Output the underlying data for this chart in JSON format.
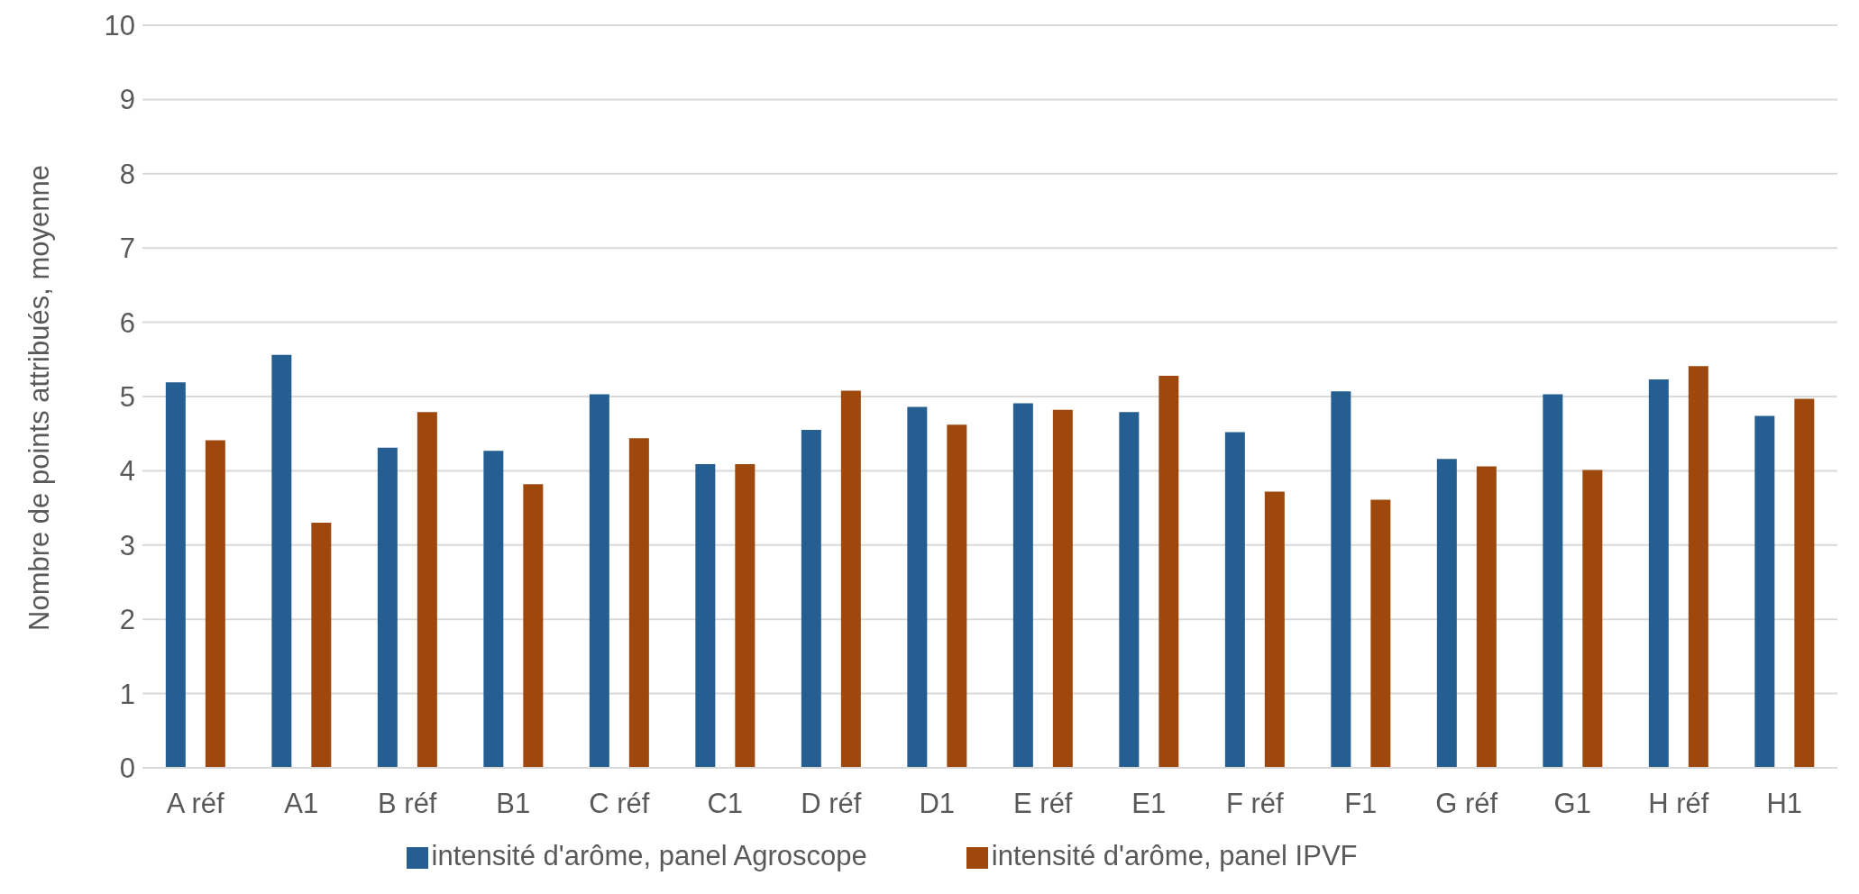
{
  "chart_data": {
    "type": "bar",
    "ylabel": "Nombre de points attribués, moyenne",
    "categories": [
      "A réf",
      "A1",
      "B réf",
      "B1",
      "C réf",
      "C1",
      "D réf",
      "D1",
      "E réf",
      "E1",
      "F réf",
      "F1",
      "G réf",
      "G1",
      "H réf",
      "H1"
    ],
    "series": [
      {
        "name": "intensité d'arôme, panel Agroscope",
        "color": "#255e91",
        "values": [
          5.19,
          5.56,
          4.31,
          4.27,
          5.03,
          4.09,
          4.55,
          4.86,
          4.91,
          4.79,
          4.52,
          5.07,
          4.16,
          5.03,
          5.23,
          4.74
        ]
      },
      {
        "name": "intensité d'arôme, panel IPVF",
        "color": "#9e480e",
        "values": [
          4.41,
          3.3,
          4.79,
          3.82,
          4.44,
          4.09,
          5.08,
          4.62,
          4.82,
          5.28,
          3.72,
          3.61,
          4.06,
          4.01,
          5.41,
          4.97
        ]
      }
    ],
    "ylim": [
      0,
      10
    ],
    "yticks": [
      0,
      1,
      2,
      3,
      4,
      5,
      6,
      7,
      8,
      9,
      10
    ],
    "grid": "y",
    "legend": "bottom"
  }
}
